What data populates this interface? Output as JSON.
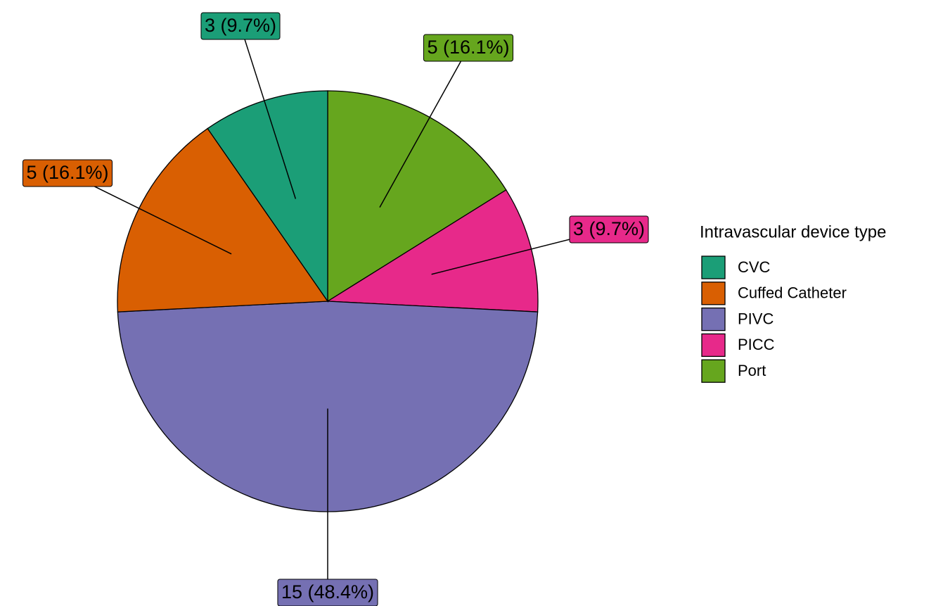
{
  "chart_data": {
    "type": "pie",
    "legend_title": "Intravascular device type",
    "categories": [
      "CVC",
      "Cuffed Catheter",
      "PIVC",
      "PICC",
      "Port"
    ],
    "values": [
      3,
      5,
      15,
      3,
      5
    ],
    "value_labels": [
      "3 (9.7%)",
      "5 (16.1%)",
      "15 (48.4%)",
      "3 (9.7%)",
      "5 (16.1%)"
    ],
    "colors": [
      "#1b9e77",
      "#d95f02",
      "#7570b3",
      "#e7298a",
      "#66a61e"
    ],
    "legend": "right"
  }
}
